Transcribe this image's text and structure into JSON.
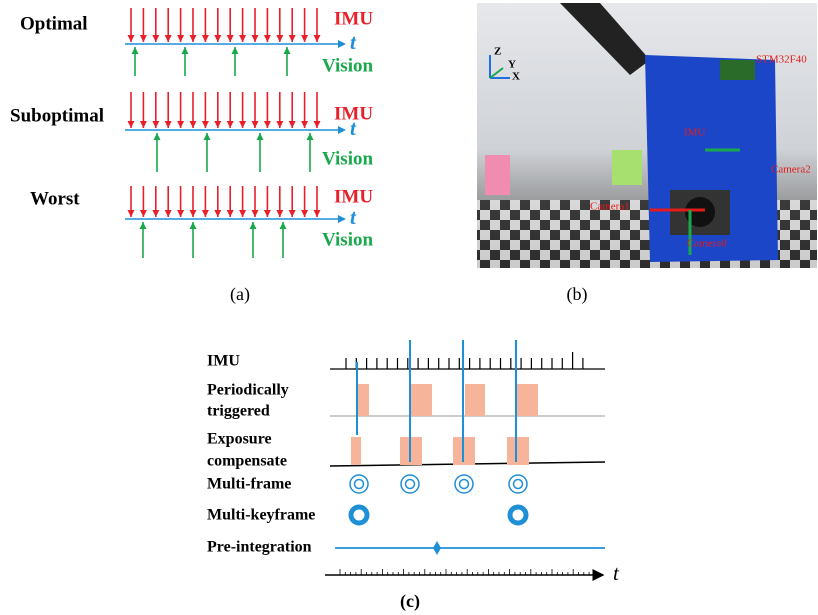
{
  "panel_a": {
    "rows": [
      {
        "label": "Optimal",
        "imu": "IMU",
        "axis": "t",
        "vision": "Vision"
      },
      {
        "label": "Suboptimal",
        "imu": "IMU",
        "axis": "t",
        "vision": "Vision"
      },
      {
        "label": "Worst",
        "imu": "IMU",
        "axis": "t",
        "vision": "Vision"
      }
    ],
    "caption": "(a)"
  },
  "panel_b": {
    "labels": {
      "board": "STM32F40",
      "imu": "IMU",
      "camera2": "Camera2",
      "camera1": "Camera1",
      "camera0": "Camera0",
      "z": "Z",
      "y": "Y",
      "x": "X"
    },
    "caption": "(b)"
  },
  "panel_c": {
    "rows": [
      {
        "lines": [
          "IMU"
        ]
      },
      {
        "lines": [
          "Periodically",
          "triggered"
        ]
      },
      {
        "lines": [
          "Exposure",
          "compensate"
        ]
      },
      {
        "lines": [
          "Multi-frame"
        ]
      },
      {
        "lines": [
          "Multi-keyframe"
        ]
      },
      {
        "lines": [
          "Pre-integration"
        ]
      }
    ],
    "axis": "t",
    "caption": "(c)"
  }
}
